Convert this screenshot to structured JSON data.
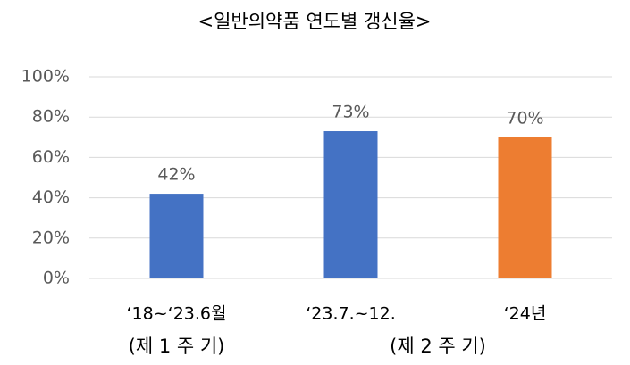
{
  "chart_data": {
    "type": "bar",
    "title": "<일반의약품 연도별 갱신율>",
    "categories": [
      "‘18~‘23.6월",
      "‘23.7.~12.",
      "‘24년"
    ],
    "values": [
      42,
      73,
      70
    ],
    "value_labels": [
      "42%",
      "73%",
      "70%"
    ],
    "colors": [
      "#4472c4",
      "#4472c4",
      "#ed7d31"
    ],
    "groups": [
      "(제 1 주 기)",
      "(제 2 주 기)"
    ],
    "ylim": [
      0,
      100
    ],
    "yticks": [
      {
        "value": 0,
        "label": "0%"
      },
      {
        "value": 20,
        "label": "20%"
      },
      {
        "value": 40,
        "label": "40%"
      },
      {
        "value": 60,
        "label": "60%"
      },
      {
        "value": 80,
        "label": "80%"
      },
      {
        "value": 100,
        "label": "100%"
      }
    ],
    "grid": true
  }
}
